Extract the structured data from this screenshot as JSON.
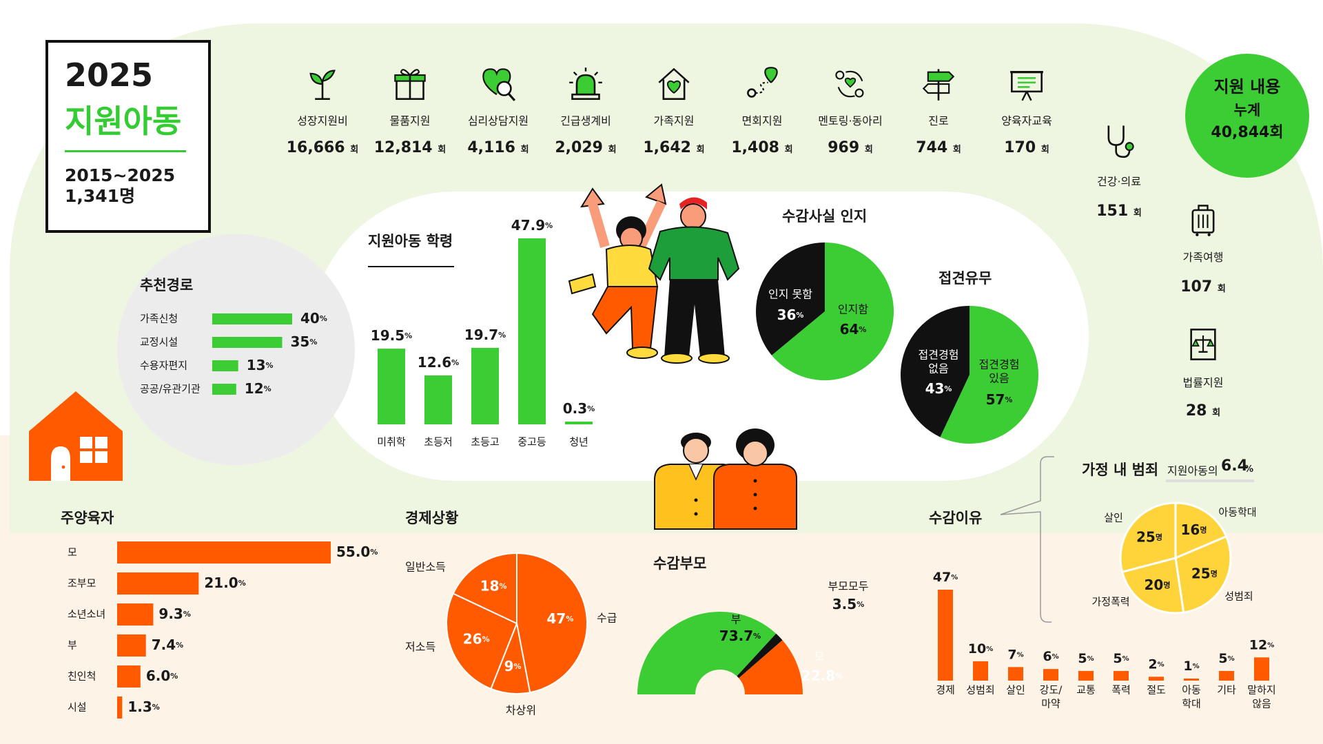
{
  "header": {
    "year": "2025",
    "title": "지원아동",
    "period": "2015~2025",
    "count": "1,341명"
  },
  "support_total": {
    "label": "지원 내용",
    "sublabel": "누계",
    "value": "40,844회"
  },
  "colors": {
    "green": "#3ccc33",
    "orange": "#ff5a00",
    "yellow": "#ffd43b",
    "black": "#111111"
  },
  "services": [
    {
      "label": "성장지원비",
      "value": "16,666",
      "unit": "회",
      "icon": "sprout-icon"
    },
    {
      "label": "물품지원",
      "value": "12,814",
      "unit": "회",
      "icon": "gift-icon"
    },
    {
      "label": "심리상담지원",
      "value": "4,116",
      "unit": "회",
      "icon": "heart-magnifier-icon"
    },
    {
      "label": "긴급생계비",
      "value": "2,029",
      "unit": "회",
      "icon": "siren-icon"
    },
    {
      "label": "가족지원",
      "value": "1,642",
      "unit": "회",
      "icon": "home-heart-icon"
    },
    {
      "label": "면회지원",
      "value": "1,408",
      "unit": "회",
      "icon": "route-pin-icon"
    },
    {
      "label": "멘토링·동아리",
      "value": "969",
      "unit": "회",
      "icon": "mentoring-cycle-icon"
    },
    {
      "label": "진로",
      "value": "744",
      "unit": "회",
      "icon": "signpost-icon"
    },
    {
      "label": "양육자교육",
      "value": "170",
      "unit": "회",
      "icon": "presentation-board-icon"
    }
  ],
  "side_services": [
    {
      "label": "건강·의료",
      "value": "151",
      "unit": "회",
      "icon": "stethoscope-icon"
    },
    {
      "label": "가족여행",
      "value": "107",
      "unit": "회",
      "icon": "suitcase-icon"
    },
    {
      "label": "법률지원",
      "value": "28",
      "unit": "회",
      "icon": "law-book-icon"
    }
  ],
  "charts": {
    "referral": {
      "title": "추천경로"
    },
    "education": {
      "title": "지원아동 학령"
    },
    "awareness": {
      "title": "수감사실 인지"
    },
    "visitation": {
      "title": "접견유무"
    },
    "caregiver": {
      "title": "주양육자"
    },
    "economy": {
      "title": "경제상황"
    },
    "parent": {
      "title": "수감부모"
    },
    "reason": {
      "title": "수감이유"
    },
    "crime": {
      "title": "가정 내 범죄",
      "note_label": "지원아동의",
      "note_value": "6.4",
      "note_unit": "%"
    }
  },
  "chart_data": [
    {
      "id": "referral",
      "type": "bar",
      "title": "추천경로",
      "orientation": "horizontal",
      "categories": [
        "가족신청",
        "교정시설",
        "수용자편지",
        "공공/유관기관"
      ],
      "values": [
        40,
        35,
        13,
        12
      ],
      "unit": "%"
    },
    {
      "id": "education",
      "type": "bar",
      "title": "지원아동 학령",
      "categories": [
        "미취학",
        "초등저",
        "초등고",
        "중고등",
        "청년"
      ],
      "values": [
        19.5,
        12.6,
        19.7,
        47.9,
        0.3
      ],
      "unit": "%"
    },
    {
      "id": "awareness",
      "type": "pie",
      "title": "수감사실 인지",
      "slices": [
        {
          "label": "인지함",
          "value": 64
        },
        {
          "label": "인지 못함",
          "value": 36
        }
      ],
      "unit": "%"
    },
    {
      "id": "visitation",
      "type": "pie",
      "title": "접견유무",
      "slices": [
        {
          "label": "접견경험 있음",
          "value": 57
        },
        {
          "label": "접견경험 없음",
          "value": 43
        }
      ],
      "unit": "%"
    },
    {
      "id": "caregiver",
      "type": "bar",
      "title": "주양육자",
      "orientation": "horizontal",
      "categories": [
        "모",
        "조부모",
        "소년소녀",
        "부",
        "친인척",
        "시설"
      ],
      "values": [
        55.0,
        21.0,
        9.3,
        7.4,
        6.0,
        1.3
      ],
      "unit": "%"
    },
    {
      "id": "economy",
      "type": "pie",
      "title": "경제상황",
      "slices": [
        {
          "label": "수급",
          "value": 47
        },
        {
          "label": "차상위",
          "value": 9
        },
        {
          "label": "저소득",
          "value": 26
        },
        {
          "label": "일반소득",
          "value": 18
        }
      ],
      "unit": "%"
    },
    {
      "id": "parent",
      "type": "pie",
      "title": "수감부모",
      "style": "half-donut",
      "slices": [
        {
          "label": "부",
          "value": 73.7
        },
        {
          "label": "부모모두",
          "value": 3.5
        },
        {
          "label": "모",
          "value": 22.8
        }
      ],
      "unit": "%"
    },
    {
      "id": "reason",
      "type": "bar",
      "title": "수감이유",
      "categories": [
        "경제",
        "성범죄",
        "살인",
        "강도/마약",
        "교통",
        "폭력",
        "절도",
        "아동학대",
        "기타",
        "말하지않음"
      ],
      "values": [
        47,
        10,
        7,
        6,
        5,
        5,
        2,
        1,
        5,
        12
      ],
      "unit": "%"
    },
    {
      "id": "crime",
      "type": "pie",
      "title": "가정 내 범죄",
      "slices": [
        {
          "label": "아동학대",
          "value": 16
        },
        {
          "label": "성범죄",
          "value": 25
        },
        {
          "label": "가정폭력",
          "value": 20
        },
        {
          "label": "살인",
          "value": 25
        }
      ],
      "unit": "명"
    }
  ]
}
